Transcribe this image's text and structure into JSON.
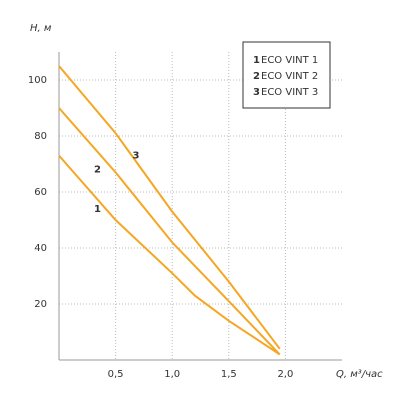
{
  "chart_data": {
    "type": "line",
    "y_label": "H, м",
    "x_label": "Q, м³/час",
    "xlim": [
      0,
      2.5
    ],
    "ylim": [
      0,
      110
    ],
    "xticks": [
      {
        "value": 0.5,
        "label": "0,5"
      },
      {
        "value": 1.0,
        "label": "1,0"
      },
      {
        "value": 1.5,
        "label": "1,5"
      },
      {
        "value": 2.0,
        "label": "2,0"
      }
    ],
    "yticks": [
      20,
      40,
      60,
      80,
      100
    ],
    "grid": true,
    "legend": "upper right",
    "series": [
      {
        "name": "ECO VINT 1",
        "label": "1",
        "color": "#f5a623",
        "x": [
          0,
          0.5,
          1.0,
          1.2,
          1.5,
          1.95
        ],
        "values": [
          73,
          50,
          31,
          23,
          14,
          2
        ],
        "label_x": 0.34,
        "label_y": 54
      },
      {
        "name": "ECO VINT 2",
        "label": "2",
        "color": "#f5a623",
        "x": [
          0,
          0.5,
          1.0,
          1.5,
          1.95
        ],
        "values": [
          90,
          67,
          42,
          21,
          2
        ],
        "label_x": 0.34,
        "label_y": 68
      },
      {
        "name": "ECO VINT 3",
        "label": "3",
        "color": "#f5a623",
        "x": [
          0,
          0.5,
          1.0,
          1.5,
          1.95
        ],
        "values": [
          105,
          81,
          53,
          28,
          4
        ],
        "label_x": 0.68,
        "label_y": 73
      }
    ]
  }
}
